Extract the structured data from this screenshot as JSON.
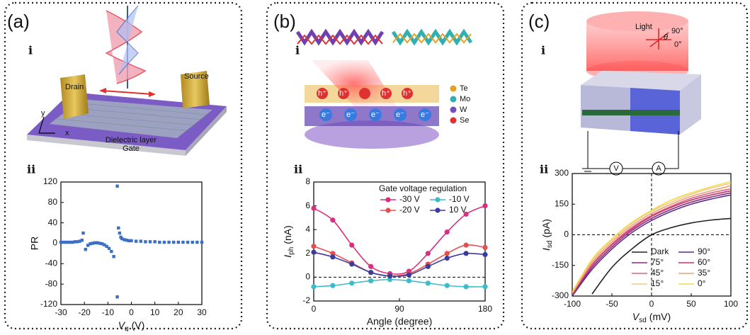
{
  "panels": [
    {
      "label": "(a)",
      "part_i": "i",
      "part_ii": "ii",
      "illustration": {
        "drain": "Drain",
        "source": "Source",
        "dielectric": "Dielectric layer",
        "gate": "Gate",
        "axis_x": "x",
        "axis_y": "y"
      }
    },
    {
      "label": "(b)",
      "part_i": "i",
      "part_ii": "ii",
      "illustration": {
        "atoms": [
          "Te",
          "Mo",
          "W",
          "Se"
        ],
        "hole": "h⁺",
        "electron": "e⁻"
      }
    },
    {
      "label": "(c)",
      "part_i": "i",
      "part_ii": "ii",
      "illustration": {
        "light": "Light",
        "angle_90": "90°",
        "angle_0": "0°",
        "theta": "θ",
        "voltmeter": "V",
        "ammeter": "A"
      }
    }
  ],
  "chart_data": [
    {
      "type": "scatter",
      "color": "#3a6fc4",
      "xlabel": {
        "symbol": "V",
        "sub": "g",
        "unit": "(V)"
      },
      "ylabel": "PR",
      "xlim": [
        -30,
        30
      ],
      "xticks": [
        -30,
        -20,
        -10,
        0,
        10,
        20,
        30
      ],
      "ylim": [
        -120,
        120
      ],
      "yticks": [
        -120,
        -80,
        -40,
        0,
        40,
        80,
        120
      ],
      "x": [
        -30,
        -29,
        -28,
        -27,
        -26,
        -25,
        -24,
        -23,
        -22,
        -21,
        -20.5,
        -19.5,
        -18.5,
        -17.5,
        -16.5,
        -15.5,
        -14.5,
        -13.5,
        -12.5,
        -11.5,
        -10.5,
        -9.5,
        -8.5,
        -7.5,
        -6,
        -6,
        -5.5,
        -5,
        -4.5,
        -4,
        -3,
        -2,
        -1,
        0,
        2,
        4,
        6,
        8,
        10,
        12,
        14,
        16,
        18,
        20,
        22,
        24,
        26,
        28,
        30
      ],
      "values": [
        2,
        2,
        2,
        2,
        2,
        2,
        3,
        3,
        4,
        6,
        20,
        -12,
        -4,
        -1,
        0,
        1,
        1,
        0,
        -1,
        -3,
        -6,
        -10,
        -16,
        -26,
        112,
        -105,
        30,
        20,
        12,
        9,
        7,
        6,
        5,
        5,
        4,
        4,
        3,
        3,
        3,
        2,
        2,
        2,
        2,
        2,
        2,
        2,
        2,
        2,
        2
      ]
    },
    {
      "type": "line",
      "markers": true,
      "xlabel": "Angle (degree)",
      "ylabel": {
        "symbol": "I",
        "sub": "ph",
        "unit": "(nA)"
      },
      "xlim": [
        0,
        180
      ],
      "xticks": [
        0,
        90,
        180
      ],
      "ylim": [
        -2,
        8
      ],
      "yticks": [
        -2,
        0,
        2,
        4,
        6,
        8
      ],
      "hlines": [
        0
      ],
      "legend_title": "Gate voltage regulation",
      "legend_position": "upper right",
      "legend_order": "column",
      "x": [
        0,
        20,
        40,
        60,
        80,
        100,
        120,
        140,
        160,
        180
      ],
      "series": [
        {
          "name": "-30 V",
          "color": "#d8307e",
          "values": [
            5.8,
            4.8,
            2.7,
            0.9,
            0.3,
            0.5,
            2.0,
            3.8,
            5.3,
            6.0
          ]
        },
        {
          "name": "-20 V",
          "color": "#e4504f",
          "values": [
            2.6,
            2.0,
            1.2,
            0.4,
            0.1,
            0.3,
            1.1,
            2.0,
            2.7,
            2.5
          ]
        },
        {
          "name": "-10 V",
          "color": "#3cbccb",
          "values": [
            -0.8,
            -0.7,
            -0.5,
            -0.3,
            -0.2,
            -0.3,
            -0.5,
            -0.7,
            -0.8,
            -0.8
          ]
        },
        {
          "name": "10 V",
          "color": "#3b3d9e",
          "values": [
            2.1,
            1.7,
            1.1,
            0.4,
            0.1,
            0.2,
            0.9,
            1.6,
            2.0,
            1.9
          ]
        }
      ]
    },
    {
      "type": "line",
      "markers": false,
      "xlabel": {
        "symbol": "V",
        "sub": "sd",
        "unit": "(mV)"
      },
      "ylabel": {
        "symbol": "I",
        "sub": "sd",
        "unit": "(pA)"
      },
      "xlim": [
        -100,
        100
      ],
      "xticks": [
        -100,
        -50,
        0,
        50,
        100
      ],
      "ylim": [
        -300,
        300
      ],
      "yticks": [
        -300,
        -150,
        0,
        150,
        300
      ],
      "hlines": [
        0
      ],
      "vlines": [
        0
      ],
      "legend_position": "lower right",
      "legend_order": "row",
      "x": [
        -100,
        -75,
        -50,
        -25,
        0,
        25,
        50,
        75,
        100
      ],
      "series": [
        {
          "name": "Dark",
          "color": "#222222",
          "values": [
            null,
            -290,
            -160,
            -70,
            0,
            35,
            58,
            72,
            80
          ]
        },
        {
          "name": "90°",
          "color": "#5a2d91",
          "values": [
            -300,
            -170,
            -70,
            10,
            70,
            115,
            150,
            175,
            195
          ]
        },
        {
          "name": "75°",
          "color": "#8a2a7a",
          "values": [
            -295,
            -160,
            -60,
            20,
            80,
            125,
            160,
            185,
            205
          ]
        },
        {
          "name": "60°",
          "color": "#c2306e",
          "values": [
            -290,
            -150,
            -50,
            28,
            90,
            135,
            170,
            195,
            215
          ]
        },
        {
          "name": "45°",
          "color": "#e0607e",
          "values": [
            -290,
            -145,
            -45,
            35,
            95,
            140,
            178,
            205,
            225
          ]
        },
        {
          "name": "35°",
          "color": "#eba07a",
          "values": [
            -285,
            -135,
            -35,
            45,
            105,
            150,
            188,
            215,
            240
          ]
        },
        {
          "name": "15°",
          "color": "#f3c98a",
          "values": [
            -280,
            -125,
            -25,
            55,
            115,
            160,
            198,
            228,
            252
          ]
        },
        {
          "name": "0°",
          "color": "#f2dc4c",
          "values": [
            -280,
            -120,
            -20,
            60,
            120,
            170,
            205,
            235,
            260
          ]
        }
      ]
    }
  ]
}
